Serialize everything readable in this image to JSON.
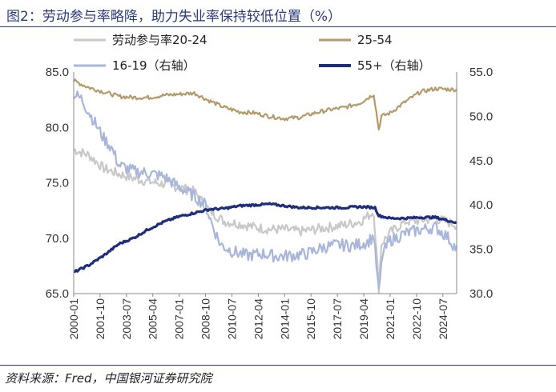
{
  "title": "图2：劳动参与率略降，助力失业率保持较低位置（%）",
  "source": "资料来源：Fred，中国银河证券研究院",
  "chart_data": {
    "type": "line",
    "left_axis": {
      "ticks": [
        65.0,
        70.0,
        75.0,
        80.0,
        85.0
      ],
      "labels": [
        "65.0",
        "70.0",
        "75.0",
        "80.0",
        "85.0"
      ],
      "ylim": [
        65,
        85
      ]
    },
    "right_axis": {
      "ticks": [
        30.0,
        35.0,
        40.0,
        45.0,
        50.0,
        55.0
      ],
      "labels": [
        "30.0",
        "35.0",
        "40.0",
        "45.0",
        "50.0",
        "55.0"
      ],
      "ylim": [
        30,
        55
      ]
    },
    "x_labels": [
      "2000-01",
      "2001-10",
      "2003-07",
      "2005-04",
      "2007-01",
      "2008-10",
      "2010-07",
      "2012-04",
      "2014-01",
      "2015-10",
      "2017-07",
      "2019-04",
      "2021-01",
      "2022-10",
      "2024-07"
    ],
    "x_range": [
      "2000-01",
      "2025-06"
    ],
    "legend": [
      "劳动参与率20-24",
      "25-54",
      "16-19（右轴）",
      "55+（右轴）"
    ],
    "series": [
      {
        "name": "劳动参与率20-24",
        "axis": "left",
        "color": "#c8c8c8",
        "x": [
          "2000-01",
          "2001-01",
          "2002-01",
          "2003-01",
          "2004-01",
          "2005-01",
          "2006-01",
          "2007-01",
          "2008-01",
          "2009-01",
          "2010-01",
          "2011-01",
          "2012-01",
          "2013-01",
          "2014-01",
          "2015-01",
          "2016-01",
          "2017-01",
          "2018-01",
          "2019-01",
          "2019-12",
          "2020-04",
          "2020-06",
          "2021-01",
          "2022-01",
          "2023-01",
          "2024-01",
          "2025-06"
        ],
        "y": [
          78.0,
          77.5,
          76.3,
          75.8,
          75.4,
          75.1,
          74.9,
          74.6,
          74.2,
          72.5,
          71.5,
          71.3,
          71.0,
          70.8,
          70.8,
          70.6,
          70.8,
          71.0,
          71.2,
          71.5,
          72.4,
          65.5,
          69.5,
          70.5,
          71.5,
          71.6,
          71.8,
          71.2
        ]
      },
      {
        "name": "25-54",
        "axis": "left",
        "color": "#b49a6a",
        "x": [
          "2000-01",
          "2001-01",
          "2002-01",
          "2003-01",
          "2004-01",
          "2005-01",
          "2006-01",
          "2007-01",
          "2008-01",
          "2009-01",
          "2010-01",
          "2011-01",
          "2012-01",
          "2013-01",
          "2014-01",
          "2015-01",
          "2016-01",
          "2017-01",
          "2018-01",
          "2019-01",
          "2019-12",
          "2020-04",
          "2020-06",
          "2021-01",
          "2022-01",
          "2023-01",
          "2024-01",
          "2025-06"
        ],
        "y": [
          84.2,
          83.6,
          83.2,
          82.8,
          82.7,
          82.7,
          82.9,
          83.0,
          83.1,
          82.4,
          81.8,
          81.4,
          81.3,
          81.0,
          80.8,
          80.9,
          81.3,
          81.6,
          81.8,
          82.2,
          83.0,
          79.8,
          81.0,
          81.3,
          82.3,
          83.2,
          83.5,
          83.4
        ]
      },
      {
        "name": "16-19（右轴）",
        "axis": "right",
        "color": "#a9b6dc",
        "x": [
          "2000-01",
          "2000-07",
          "2001-01",
          "2001-07",
          "2002-01",
          "2002-07",
          "2003-01",
          "2004-01",
          "2005-01",
          "2006-01",
          "2007-01",
          "2007-07",
          "2008-01",
          "2008-10",
          "2009-04",
          "2009-10",
          "2010-07",
          "2011-07",
          "2012-07",
          "2013-07",
          "2014-07",
          "2015-07",
          "2016-07",
          "2017-07",
          "2018-07",
          "2019-07",
          "2019-12",
          "2020-04",
          "2020-07",
          "2021-01",
          "2022-01",
          "2023-01",
          "2024-01",
          "2024-10",
          "2025-06"
        ],
        "y": [
          52.5,
          52.0,
          50.5,
          49.0,
          47.5,
          46.5,
          44.5,
          43.8,
          43.6,
          43.2,
          42.0,
          41.5,
          41.0,
          40.0,
          37.5,
          35.5,
          34.8,
          34.3,
          34.5,
          34.2,
          34.3,
          34.5,
          35.2,
          35.5,
          35.4,
          35.8,
          36.5,
          30.0,
          34.5,
          36.0,
          36.8,
          37.2,
          37.5,
          36.5,
          35.0
        ]
      },
      {
        "name": "55+（右轴）",
        "axis": "right",
        "color": "#1e2e7a",
        "x": [
          "2000-01",
          "2001-01",
          "2002-01",
          "2003-01",
          "2004-01",
          "2005-01",
          "2006-01",
          "2007-01",
          "2008-01",
          "2009-01",
          "2010-01",
          "2011-01",
          "2012-01",
          "2013-01",
          "2014-01",
          "2015-01",
          "2016-01",
          "2017-01",
          "2018-01",
          "2019-01",
          "2020-01",
          "2020-04",
          "2021-01",
          "2022-01",
          "2023-01",
          "2024-01",
          "2025-06"
        ],
        "y": [
          32.4,
          33.2,
          34.3,
          35.6,
          36.3,
          37.3,
          38.1,
          38.7,
          39.1,
          39.5,
          39.6,
          39.9,
          40.0,
          40.1,
          39.9,
          39.7,
          39.7,
          39.7,
          39.7,
          39.8,
          39.7,
          38.8,
          38.5,
          38.5,
          38.6,
          38.6,
          38.0
        ]
      }
    ]
  }
}
